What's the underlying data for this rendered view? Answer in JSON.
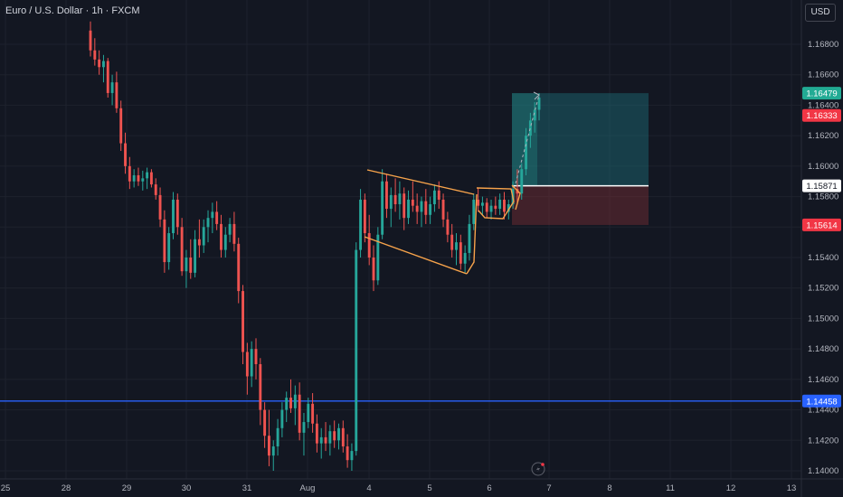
{
  "header": {
    "symbol": "Euro / U.S. Dollar · 1h · FXCM",
    "currency": "USD"
  },
  "chart_data": {
    "type": "candlestick",
    "y_ticks": [
      "1.16800",
      "1.16600",
      "1.16400",
      "1.16200",
      "1.16000",
      "1.15800",
      "1.15600",
      "1.15400",
      "1.15200",
      "1.15000",
      "1.14800",
      "1.14600",
      "1.14400",
      "1.14200",
      "1.14000"
    ],
    "x_ticks": [
      "25",
      "28",
      "29",
      "30",
      "31",
      "Aug",
      "4",
      "5",
      "6",
      "7",
      "8",
      "11",
      "12",
      "13"
    ],
    "ylim": [
      1.1395,
      1.1695
    ],
    "price_badges": [
      {
        "value": "1.16479",
        "color": "#22ab94"
      },
      {
        "value": "1.16333",
        "color": "#f23645"
      },
      {
        "value": "1.15871",
        "color": "#ffffff"
      },
      {
        "value": "1.15614",
        "color": "#f23645"
      },
      {
        "value": "1.14458",
        "color": "#2962ff"
      }
    ],
    "horizontal_line": 1.14458,
    "position": {
      "entry": 1.15871,
      "target": 1.16479,
      "stop": 1.15614
    },
    "colors": {
      "up": "#26a69a",
      "down": "#ef5350",
      "grid": "#1e222d",
      "pattern": "#f7a34b",
      "line": "#2962ff"
    },
    "candles": [
      [
        1.1689,
        1.1695,
        1.1672,
        1.1676
      ],
      [
        1.1676,
        1.1684,
        1.1666,
        1.167
      ],
      [
        1.167,
        1.1676,
        1.166,
        1.1665
      ],
      [
        1.1665,
        1.1673,
        1.1655,
        1.1669
      ],
      [
        1.1669,
        1.1671,
        1.1645,
        1.1648
      ],
      [
        1.1648,
        1.166,
        1.164,
        1.1655
      ],
      [
        1.1655,
        1.1662,
        1.1635,
        1.1638
      ],
      [
        1.1638,
        1.1643,
        1.161,
        1.1615
      ],
      [
        1.1615,
        1.1622,
        1.1595,
        1.16
      ],
      [
        1.16,
        1.1606,
        1.1585,
        1.159
      ],
      [
        1.159,
        1.1598,
        1.1586,
        1.1594
      ],
      [
        1.1594,
        1.1599,
        1.1587,
        1.159
      ],
      [
        1.159,
        1.1597,
        1.1584,
        1.1592
      ],
      [
        1.1592,
        1.1599,
        1.1585,
        1.1596
      ],
      [
        1.1596,
        1.1598,
        1.1586,
        1.1588
      ],
      [
        1.1588,
        1.1592,
        1.1578,
        1.1581
      ],
      [
        1.1581,
        1.1586,
        1.156,
        1.1565
      ],
      [
        1.1565,
        1.1571,
        1.153,
        1.1537
      ],
      [
        1.1537,
        1.156,
        1.1532,
        1.1556
      ],
      [
        1.1556,
        1.1583,
        1.1552,
        1.1578
      ],
      [
        1.1578,
        1.1582,
        1.1555,
        1.156
      ],
      [
        1.156,
        1.1566,
        1.1528,
        1.1531
      ],
      [
        1.1531,
        1.1545,
        1.152,
        1.154
      ],
      [
        1.154,
        1.1552,
        1.1526,
        1.153
      ],
      [
        1.153,
        1.1558,
        1.1527,
        1.1552
      ],
      [
        1.1552,
        1.1565,
        1.154,
        1.1548
      ],
      [
        1.1548,
        1.1565,
        1.1543,
        1.156
      ],
      [
        1.156,
        1.1571,
        1.155,
        1.1566
      ],
      [
        1.1566,
        1.1576,
        1.1556,
        1.157
      ],
      [
        1.157,
        1.1577,
        1.1558,
        1.1562
      ],
      [
        1.1562,
        1.1568,
        1.154,
        1.1545
      ],
      [
        1.1545,
        1.156,
        1.154,
        1.1555
      ],
      [
        1.1555,
        1.1566,
        1.155,
        1.1562
      ],
      [
        1.1562,
        1.157,
        1.1544,
        1.1549
      ],
      [
        1.1549,
        1.1553,
        1.151,
        1.1518
      ],
      [
        1.1518,
        1.1522,
        1.147,
        1.1478
      ],
      [
        1.1478,
        1.1484,
        1.145,
        1.1462
      ],
      [
        1.1462,
        1.1485,
        1.1455,
        1.148
      ],
      [
        1.148,
        1.1487,
        1.146,
        1.147
      ],
      [
        1.147,
        1.1474,
        1.143,
        1.144
      ],
      [
        1.144,
        1.1445,
        1.1415,
        1.1423
      ],
      [
        1.1423,
        1.144,
        1.1403,
        1.141
      ],
      [
        1.141,
        1.142,
        1.14,
        1.1416
      ],
      [
        1.1416,
        1.1434,
        1.141,
        1.1428
      ],
      [
        1.1428,
        1.1445,
        1.1422,
        1.144
      ],
      [
        1.144,
        1.1452,
        1.1432,
        1.1448
      ],
      [
        1.1448,
        1.146,
        1.1438,
        1.1441
      ],
      [
        1.1441,
        1.1456,
        1.143,
        1.145
      ],
      [
        1.145,
        1.1458,
        1.142,
        1.1425
      ],
      [
        1.1425,
        1.1438,
        1.141,
        1.1432
      ],
      [
        1.1432,
        1.1448,
        1.1428,
        1.1444
      ],
      [
        1.1444,
        1.1451,
        1.1425,
        1.1431
      ],
      [
        1.1431,
        1.1437,
        1.1412,
        1.1418
      ],
      [
        1.1418,
        1.1428,
        1.1408,
        1.1422
      ],
      [
        1.1422,
        1.1432,
        1.1413,
        1.1418
      ],
      [
        1.1418,
        1.143,
        1.141,
        1.1426
      ],
      [
        1.1426,
        1.1433,
        1.1415,
        1.142
      ],
      [
        1.142,
        1.1431,
        1.1414,
        1.1428
      ],
      [
        1.1428,
        1.1433,
        1.1412,
        1.1416
      ],
      [
        1.1416,
        1.1424,
        1.1402,
        1.1407
      ],
      [
        1.1407,
        1.1418,
        1.14,
        1.1413
      ],
      [
        1.1413,
        1.155,
        1.141,
        1.1545
      ],
      [
        1.1545,
        1.1585,
        1.154,
        1.1578
      ],
      [
        1.1578,
        1.1582,
        1.155,
        1.1556
      ],
      [
        1.1556,
        1.1568,
        1.1535,
        1.154
      ],
      [
        1.154,
        1.1548,
        1.1518,
        1.1525
      ],
      [
        1.1525,
        1.156,
        1.1522,
        1.1555
      ],
      [
        1.1555,
        1.1598,
        1.1552,
        1.159
      ],
      [
        1.159,
        1.1595,
        1.1566,
        1.1572
      ],
      [
        1.1572,
        1.1586,
        1.156,
        1.1581
      ],
      [
        1.1581,
        1.1592,
        1.157,
        1.1575
      ],
      [
        1.1575,
        1.159,
        1.1565,
        1.1582
      ],
      [
        1.1582,
        1.1586,
        1.1558,
        1.1566
      ],
      [
        1.1566,
        1.1584,
        1.1562,
        1.1578
      ],
      [
        1.1578,
        1.159,
        1.157,
        1.1574
      ],
      [
        1.1574,
        1.1582,
        1.1562,
        1.157
      ],
      [
        1.157,
        1.158,
        1.156,
        1.1577
      ],
      [
        1.1577,
        1.1585,
        1.1562,
        1.1568
      ],
      [
        1.1568,
        1.158,
        1.1562,
        1.1575
      ],
      [
        1.1575,
        1.1588,
        1.157,
        1.1584
      ],
      [
        1.1584,
        1.159,
        1.1572,
        1.1578
      ],
      [
        1.1578,
        1.1582,
        1.156,
        1.1565
      ],
      [
        1.1565,
        1.157,
        1.155,
        1.1555
      ],
      [
        1.1555,
        1.1562,
        1.154,
        1.1545
      ],
      [
        1.1545,
        1.1556,
        1.1535,
        1.155
      ],
      [
        1.155,
        1.1555,
        1.1532,
        1.1536
      ],
      [
        1.1536,
        1.1548,
        1.153,
        1.1543
      ],
      [
        1.1543,
        1.1568,
        1.1538,
        1.1562
      ],
      [
        1.1562,
        1.1582,
        1.1558,
        1.1578
      ],
      [
        1.1578,
        1.1586,
        1.157,
        1.1574
      ],
      [
        1.1574,
        1.158,
        1.1568,
        1.1576
      ],
      [
        1.1576,
        1.1579,
        1.1566,
        1.157
      ],
      [
        1.157,
        1.1578,
        1.1565,
        1.1574
      ],
      [
        1.1574,
        1.158,
        1.1568,
        1.1572
      ],
      [
        1.1572,
        1.1582,
        1.1568,
        1.1578
      ],
      [
        1.1578,
        1.1583,
        1.1565,
        1.157
      ],
      [
        1.157,
        1.1578,
        1.1565,
        1.1575
      ],
      [
        1.1575,
        1.159,
        1.1572,
        1.1585
      ],
      [
        1.1585,
        1.1598,
        1.1576,
        1.1582
      ],
      [
        1.1582,
        1.1602,
        1.1578,
        1.1598
      ],
      [
        1.1598,
        1.1625,
        1.1594,
        1.162
      ],
      [
        1.162,
        1.1635,
        1.1612,
        1.163
      ],
      [
        1.163,
        1.1642,
        1.1622,
        1.1637
      ],
      [
        1.1637,
        1.1648,
        1.163,
        1.1645
      ]
    ],
    "candle_x_start": 100,
    "candle_x_end": 596
  }
}
